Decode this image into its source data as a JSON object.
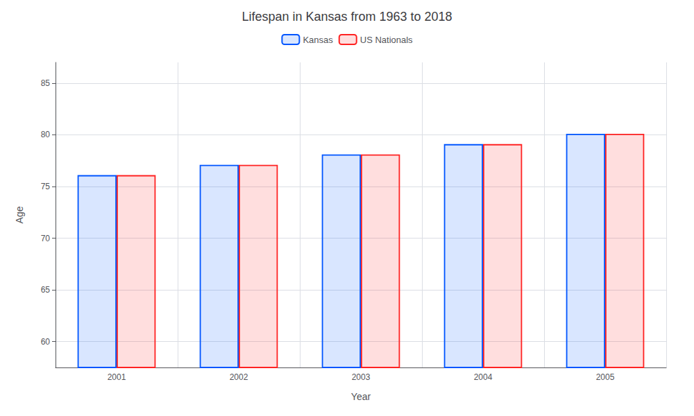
{
  "chart_data": {
    "type": "bar",
    "title": "Lifespan in Kansas from 1963 to 2018",
    "x_label": "Year",
    "y_label": "Age",
    "categories": [
      "2001",
      "2002",
      "2003",
      "2004",
      "2005"
    ],
    "series": [
      {
        "name": "Kansas",
        "color": "#0055ff",
        "values": [
          76.1,
          77.1,
          78.1,
          79.1,
          80.1
        ]
      },
      {
        "name": "US Nationals",
        "color": "#ff2222",
        "values": [
          76.1,
          77.1,
          78.1,
          79.1,
          80.1
        ]
      }
    ],
    "ylim": [
      57.5,
      87
    ],
    "yticks": [
      60,
      65,
      70,
      75,
      80,
      85
    ],
    "grid": true,
    "legend": "top"
  }
}
